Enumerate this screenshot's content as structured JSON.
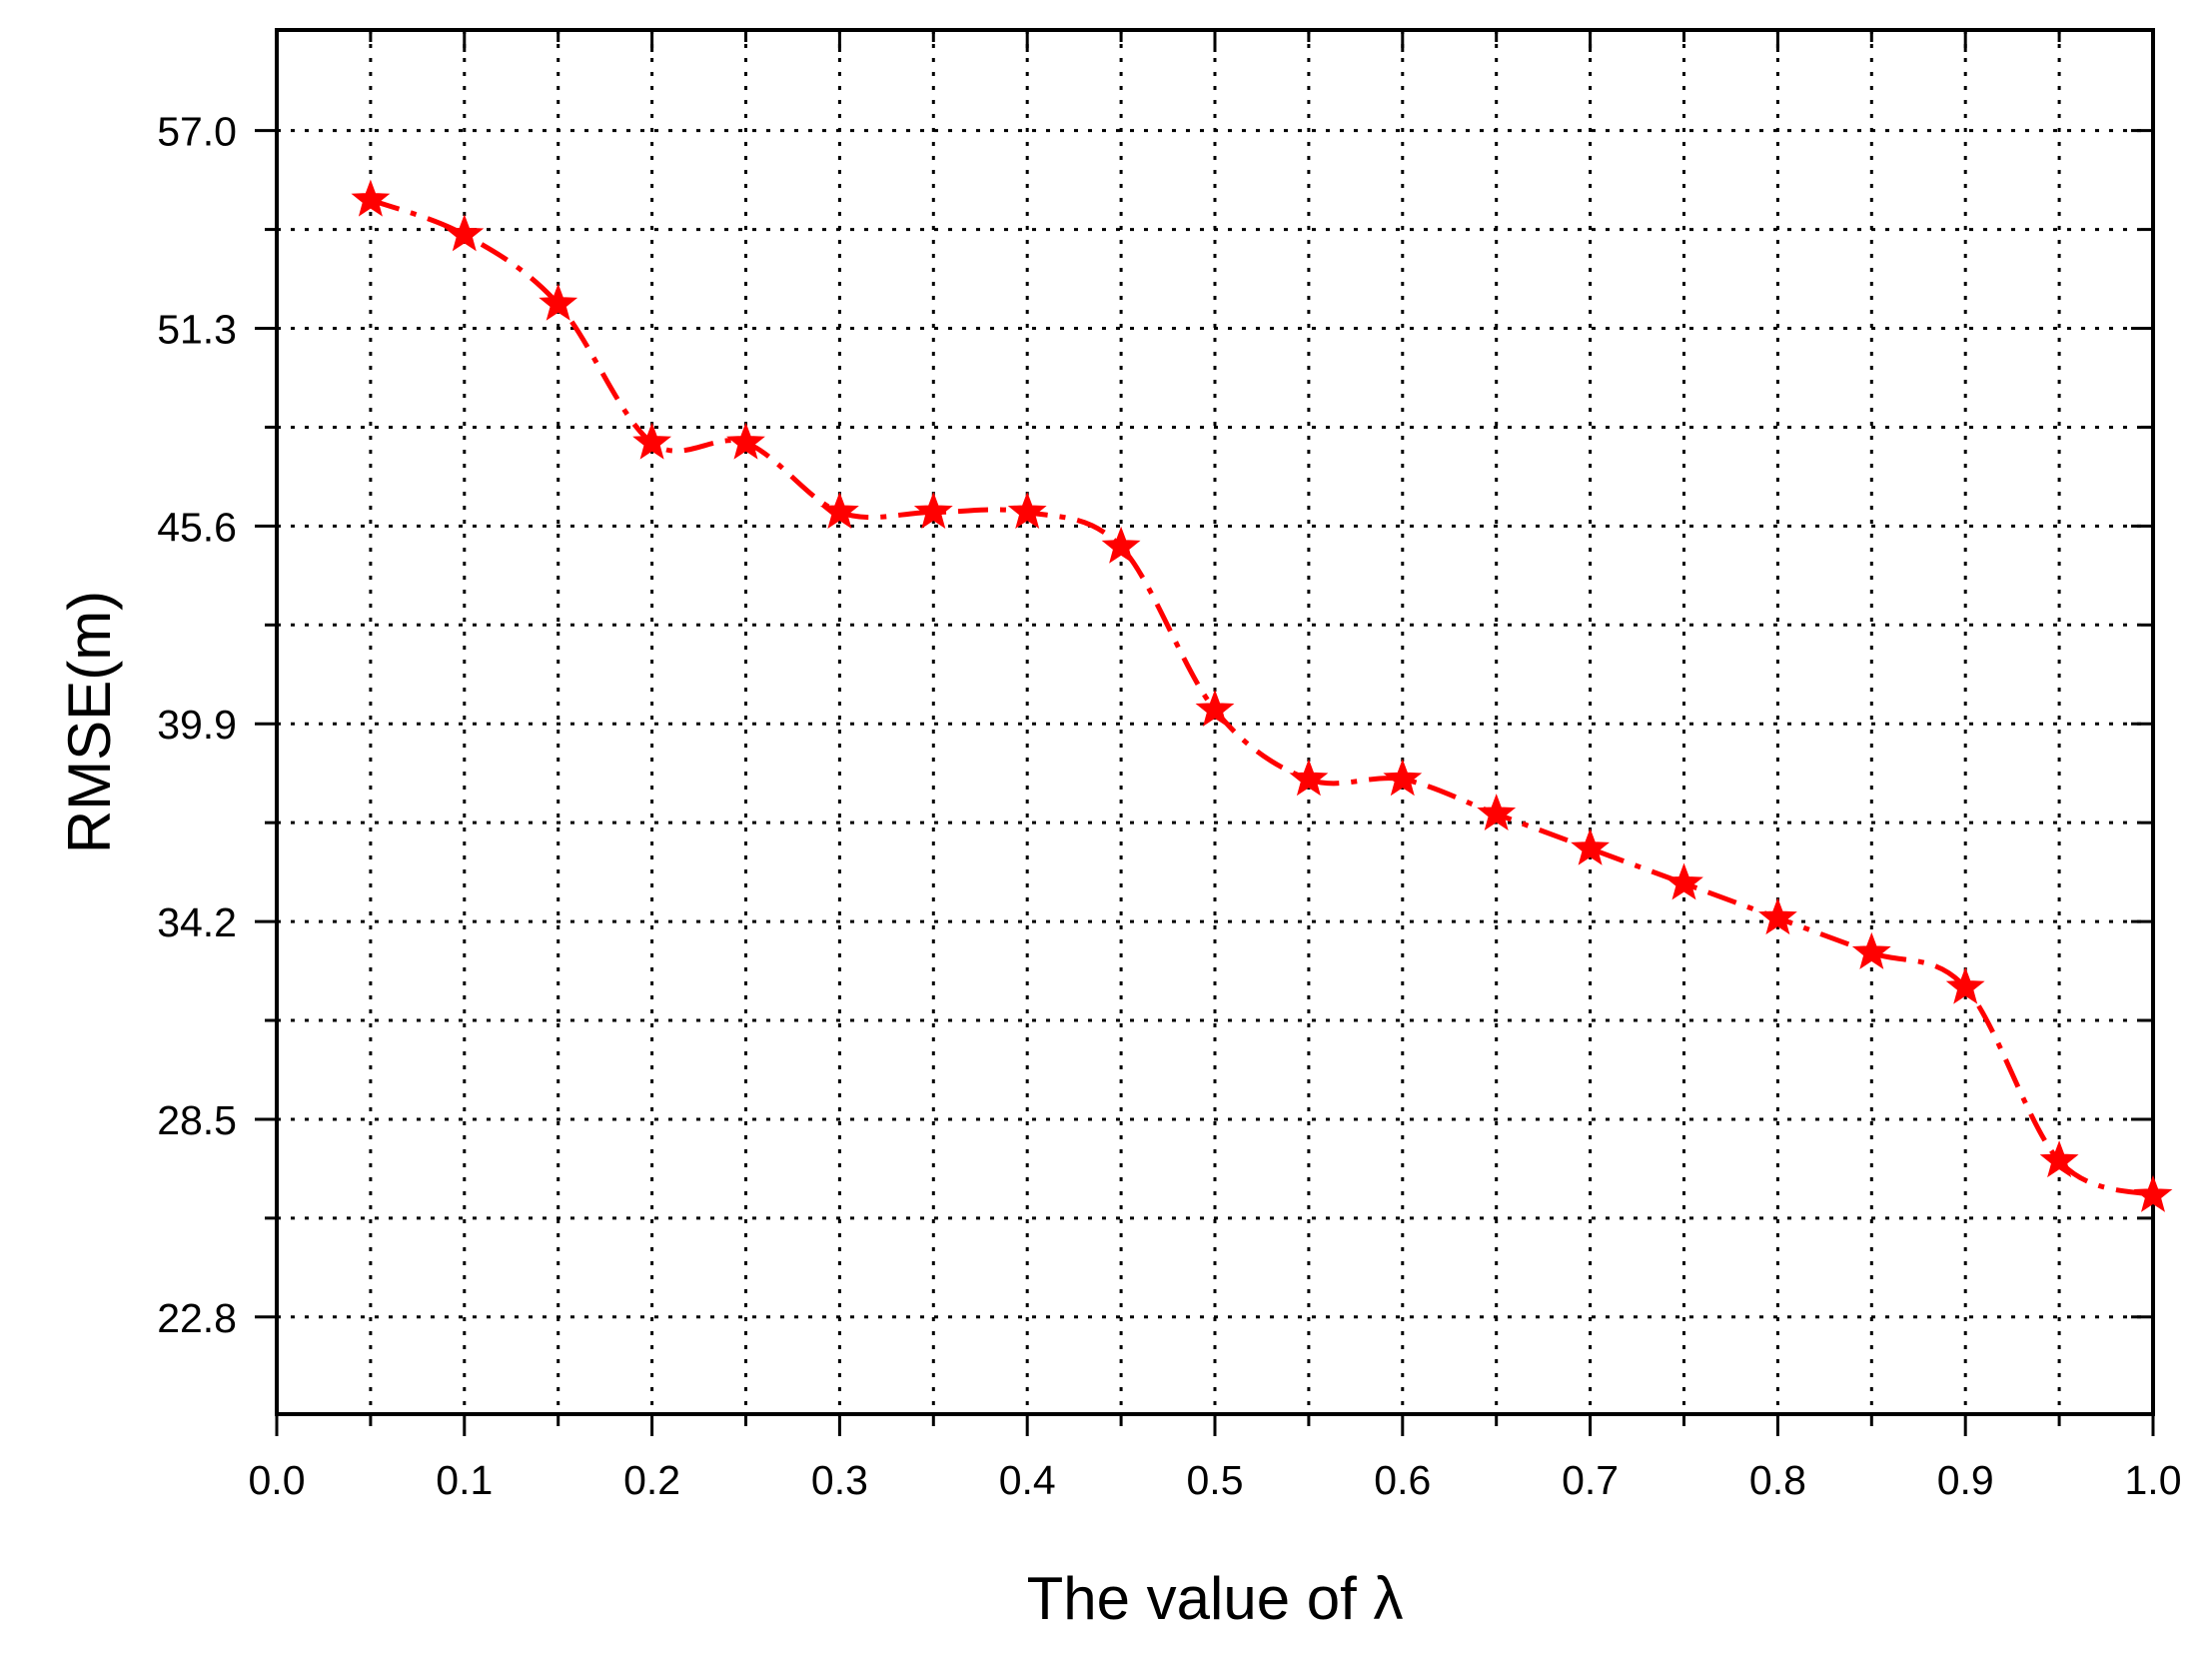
{
  "chart_data": {
    "type": "line",
    "title": "",
    "xlabel": "The value of λ",
    "ylabel": "RMSE(m)",
    "xlim": [
      0.0,
      1.0
    ],
    "ylim": [
      20.0,
      59.9
    ],
    "x_ticks": [
      "0.0",
      "0.1",
      "0.2",
      "0.3",
      "0.4",
      "0.5",
      "0.6",
      "0.7",
      "0.8",
      "0.9",
      "1.0"
    ],
    "y_ticks": [
      "22.8",
      "28.5",
      "34.2",
      "39.9",
      "45.6",
      "51.3",
      "57.0"
    ],
    "grid": true,
    "series": [
      {
        "color": "#ff0000",
        "marker": "star",
        "line_style": "dash-dot",
        "x": [
          0.05,
          0.1,
          0.15,
          0.2,
          0.25,
          0.3,
          0.35,
          0.4,
          0.45,
          0.5,
          0.55,
          0.6,
          0.65,
          0.7,
          0.75,
          0.8,
          0.85,
          0.9,
          0.95,
          1.0
        ],
        "y": [
          55.0,
          54.0,
          52.0,
          48.0,
          48.0,
          46.0,
          46.0,
          46.0,
          45.0,
          40.3,
          38.3,
          38.3,
          37.3,
          36.3,
          35.3,
          34.3,
          33.3,
          32.3,
          27.3,
          26.3
        ]
      }
    ]
  }
}
